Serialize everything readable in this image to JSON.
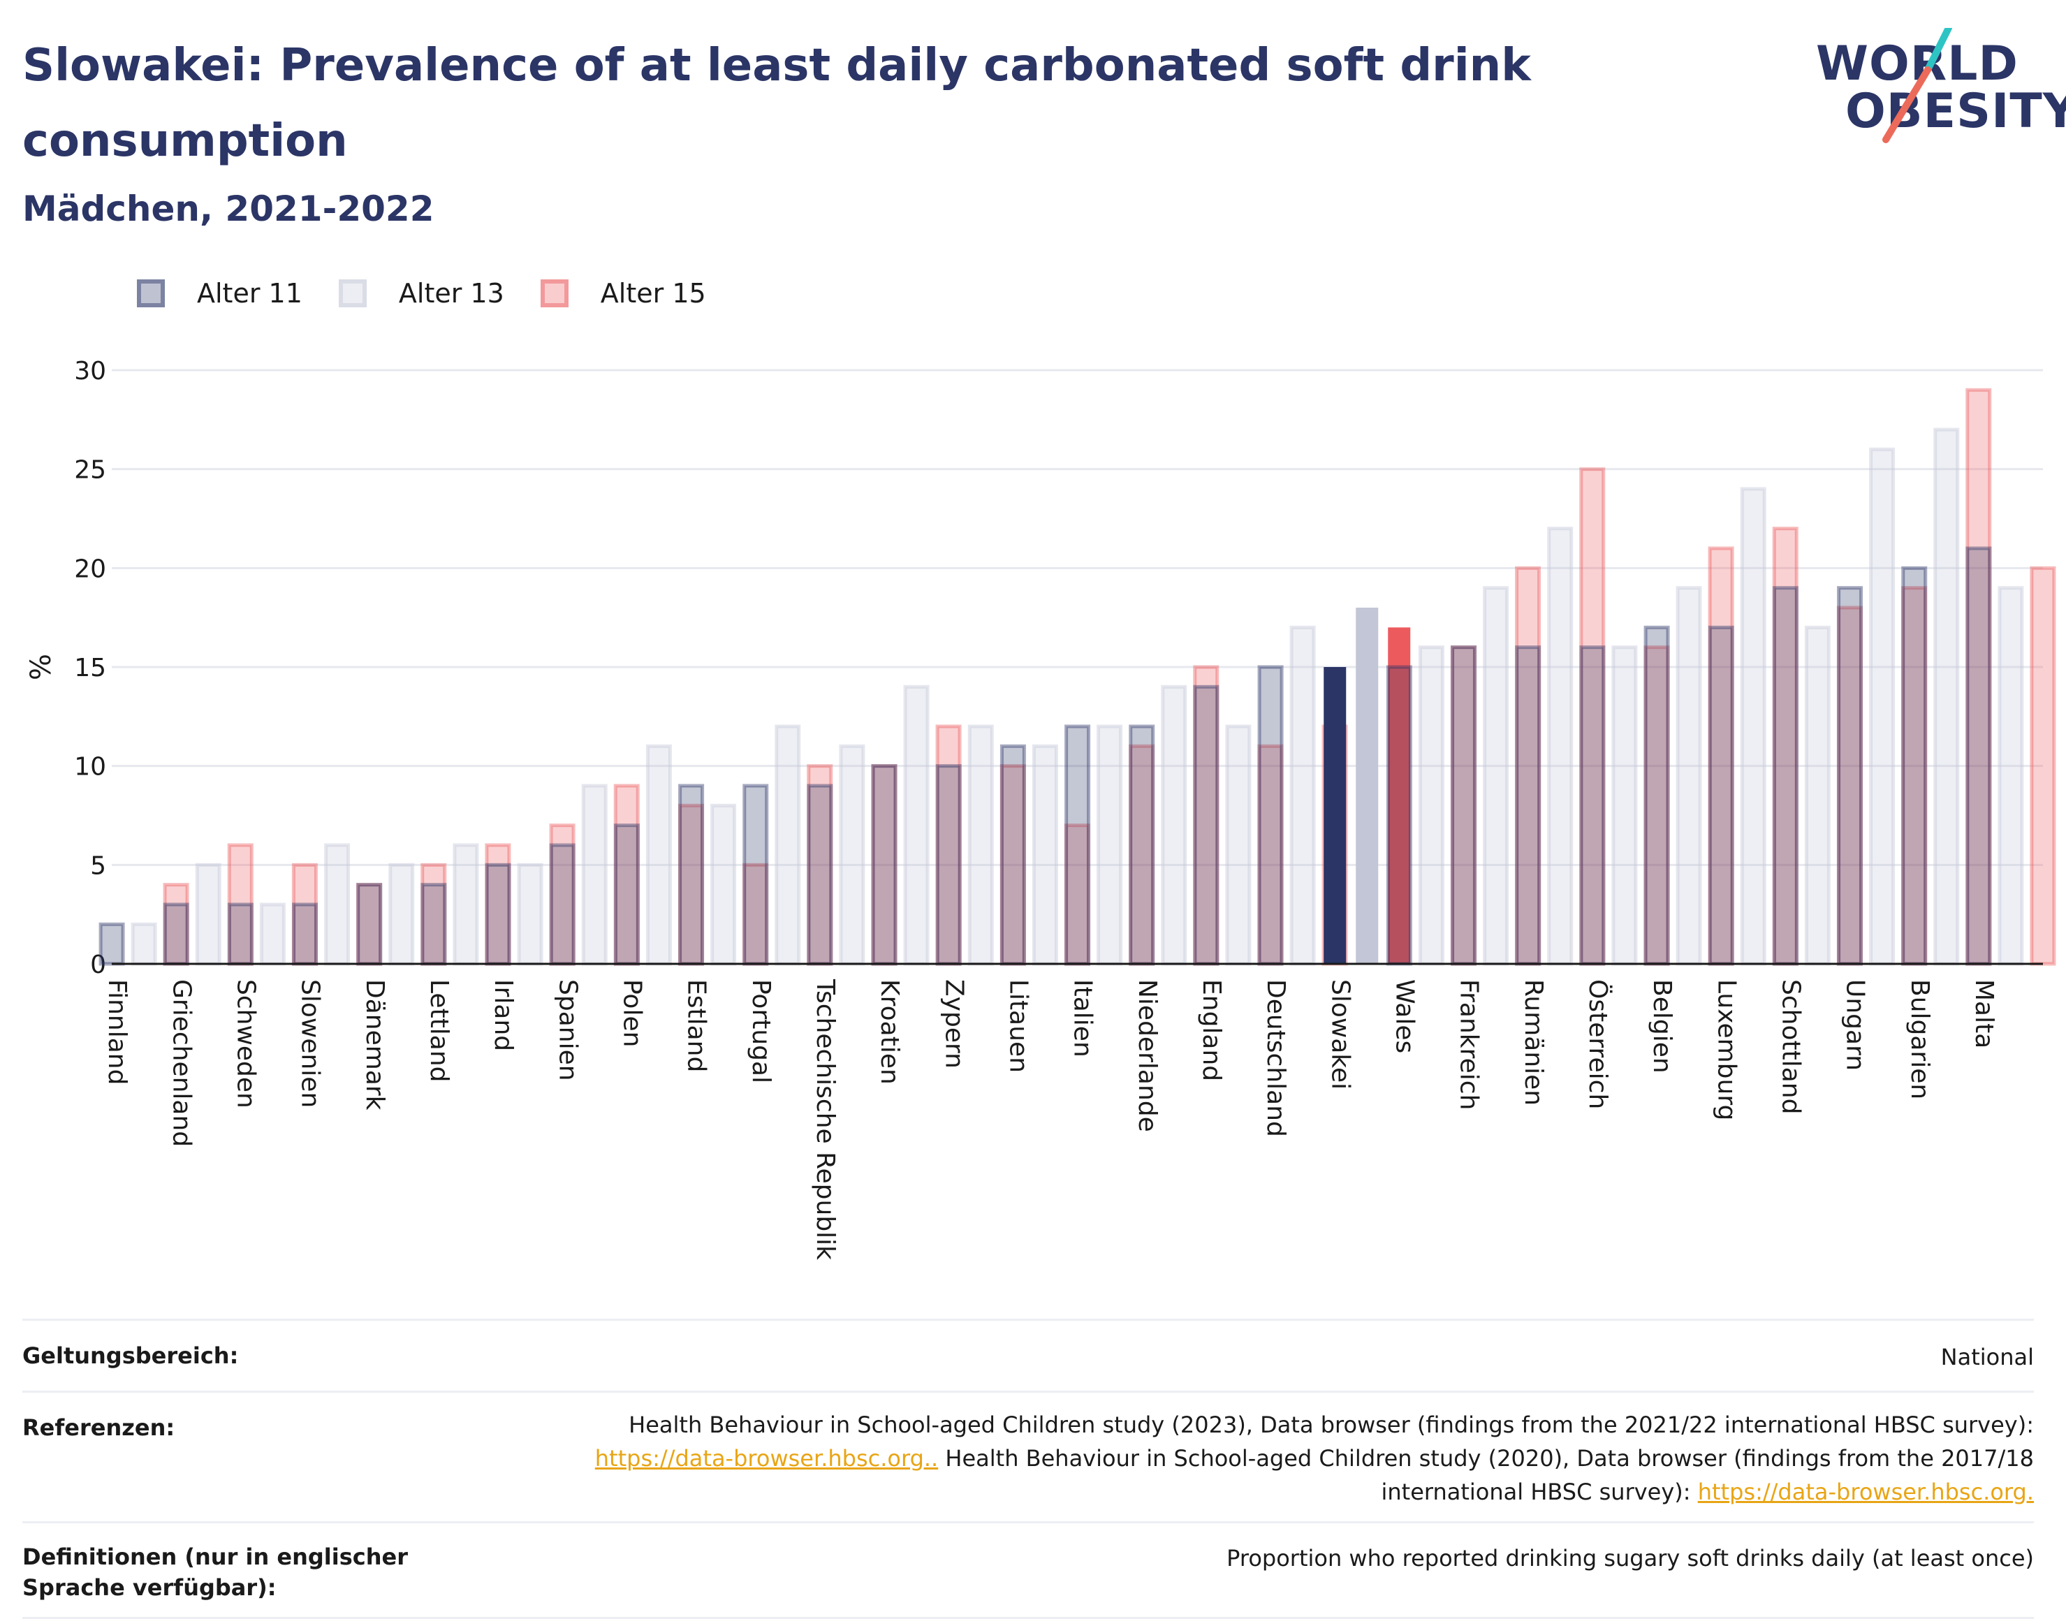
{
  "title": "Slowakei: Prevalence of at least daily carbonated soft drink consumption",
  "subtitle": "Mädchen, 2021-2022",
  "logo": {
    "line1": "WORLD",
    "line2": "OBESITY"
  },
  "colors": {
    "age11": "#2b3566",
    "age13": "#c3c6d6",
    "age15": "#ec5a5e",
    "title": "#2b3566",
    "link": "#e8a515",
    "logo_teal": "#2ec4c4",
    "logo_coral": "#ec6a5a"
  },
  "chart_data": {
    "type": "bar",
    "title": "Slowakei: Prevalence of at least daily carbonated soft drink consumption",
    "xlabel": "",
    "ylabel": "%",
    "ylim": [
      0,
      30
    ],
    "yticks": [
      0,
      5,
      10,
      15,
      20,
      25,
      30
    ],
    "grid": true,
    "legend_position": "top-left",
    "highlight": "Slowakei",
    "categories": [
      "Finnland",
      "Griechenland",
      "Schweden",
      "Slowenien",
      "Dänemark",
      "Lettland",
      "Irland",
      "Spanien",
      "Polen",
      "Estland",
      "Portugal",
      "Tschechische Republik",
      "Kroatien",
      "Zypern",
      "Litauen",
      "Italien",
      "Niederlande",
      "England",
      "Deutschland",
      "Slowakei",
      "Wales",
      "Frankreich",
      "Rumänien",
      "Österreich",
      "Belgien",
      "Luxemburg",
      "Schottland",
      "Ungarn",
      "Bulgarien",
      "Malta"
    ],
    "series": [
      {
        "name": "Alter 11",
        "values": [
          2,
          3,
          3,
          3,
          4,
          4,
          5,
          6,
          7,
          9,
          9,
          9,
          10,
          10,
          11,
          12,
          12,
          14,
          15,
          15,
          15,
          16,
          16,
          16,
          17,
          17,
          19,
          19,
          20,
          21
        ]
      },
      {
        "name": "Alter 13",
        "values": [
          2,
          5,
          3,
          6,
          5,
          6,
          5,
          9,
          11,
          8,
          12,
          11,
          14,
          12,
          11,
          12,
          14,
          12,
          17,
          18,
          16,
          19,
          22,
          16,
          19,
          24,
          17,
          26,
          27,
          19
        ]
      },
      {
        "name": "Alter 15",
        "values": [
          4,
          6,
          5,
          4,
          5,
          6,
          7,
          9,
          8,
          5,
          10,
          10,
          12,
          10,
          7,
          11,
          15,
          11,
          12,
          17,
          16,
          20,
          25,
          16,
          21,
          22,
          18,
          19,
          29,
          20
        ]
      }
    ]
  },
  "info": [
    {
      "label": "Geltungsbereich:",
      "value": "National"
    },
    {
      "label": "Referenzen:",
      "parts": [
        {
          "text": "Health Behaviour in School-aged Children study (2023), Data browser (findings from the 2021/22 international HBSC survey): "
        },
        {
          "text": "https://data-browser.hbsc.org..",
          "link": true
        },
        {
          "text": " Health Behaviour in School-aged Children study (2020), Data browser (findings from the 2017/18 international HBSC survey): "
        },
        {
          "text": "https://data-browser.hbsc.org.",
          "link": true
        }
      ]
    },
    {
      "label": "Definitionen (nur in englischer Sprache verfügbar):",
      "value": "Proportion who reported drinking sugary soft drinks daily (at least once)"
    }
  ]
}
